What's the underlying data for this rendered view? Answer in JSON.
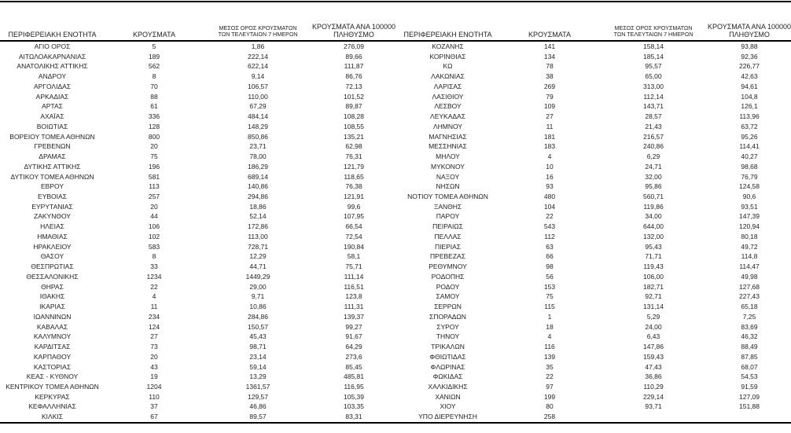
{
  "table": {
    "headers": {
      "region": "ΠΕΡΙΦΕΡΕΙΑΚΗ ΕΝΟΤΗΤΑ",
      "cases": "ΚΡΟΥΣΜΑΤΑ",
      "avg7_line1": "ΜΕΣΟΣ ΟΡΟΣ ΚΡΟΥΣΜΑΤΩΝ",
      "avg7_line2": "ΤΩΝ ΤΕΛΕΥΤΑΙΩΝ 7 ΗΜΕΡΩΝ",
      "per100k_line1": "ΚΡΟΥΣΜΑΤΑ ΑΝΑ 100000",
      "per100k_line2": "ΠΛΗΘΥΣΜΟ"
    },
    "left_rows": [
      [
        "ΑΓΙΟ ΟΡΟΣ",
        "5",
        "1,86",
        "276,09"
      ],
      [
        "ΑΙΤΩΛΟΑΚΑΡΝΑΝΙΑΣ",
        "189",
        "222,14",
        "89,66"
      ],
      [
        "ΑΝΑΤΟΛΙΚΗΣ ΑΤΤΙΚΗΣ",
        "562",
        "622,14",
        "111,87"
      ],
      [
        "ΑΝΔΡΟΥ",
        "8",
        "9,14",
        "86,76"
      ],
      [
        "ΑΡΓΟΛΙΔΑΣ",
        "70",
        "106,57",
        "72,13"
      ],
      [
        "ΑΡΚΑΔΙΑΣ",
        "88",
        "110,00",
        "101,52"
      ],
      [
        "ΑΡΤΑΣ",
        "61",
        "67,29",
        "89,87"
      ],
      [
        "ΑΧΑΪΑΣ",
        "336",
        "484,14",
        "108,28"
      ],
      [
        "ΒΟΙΩΤΙΑΣ",
        "128",
        "148,29",
        "108,55"
      ],
      [
        "ΒΟΡΕΙΟΥ ΤΟΜΕΑ ΑΘΗΝΩΝ",
        "800",
        "850,86",
        "135,21"
      ],
      [
        "ΓΡΕΒΕΝΩΝ",
        "20",
        "23,71",
        "62,98"
      ],
      [
        "ΔΡΑΜΑΣ",
        "75",
        "78,00",
        "76,31"
      ],
      [
        "ΔΥΤΙΚΗΣ ΑΤΤΙΚΗΣ",
        "196",
        "186,29",
        "121,79"
      ],
      [
        "ΔΥΤΙΚΟΥ ΤΟΜΕΑ ΑΘΗΝΩΝ",
        "581",
        "689,14",
        "118,65"
      ],
      [
        "ΕΒΡΟΥ",
        "113",
        "140,86",
        "76,38"
      ],
      [
        "ΕΥΒΟΙΑΣ",
        "257",
        "294,86",
        "121,91"
      ],
      [
        "ΕΥΡΥΤΑΝΙΑΣ",
        "20",
        "18,86",
        "99,6"
      ],
      [
        "ΖΑΚΥΝΘΟΥ",
        "44",
        "52,14",
        "107,95"
      ],
      [
        "ΗΛΕΙΑΣ",
        "106",
        "172,86",
        "66,54"
      ],
      [
        "ΗΜΑΘΙΑΣ",
        "102",
        "113,00",
        "72,54"
      ],
      [
        "ΗΡΑΚΛΕΙΟΥ",
        "583",
        "728,71",
        "190,84"
      ],
      [
        "ΘΑΣΟΥ",
        "8",
        "12,29",
        "58,1"
      ],
      [
        "ΘΕΣΠΡΩΤΙΑΣ",
        "33",
        "44,71",
        "75,71"
      ],
      [
        "ΘΕΣΣΑΛΟΝΙΚΗΣ",
        "1234",
        "1449,29",
        "111,14"
      ],
      [
        "ΘΗΡΑΣ",
        "22",
        "29,00",
        "116,51"
      ],
      [
        "ΙΘΑΚΗΣ",
        "4",
        "9,71",
        "123,8"
      ],
      [
        "ΙΚΑΡΙΑΣ",
        "11",
        "10,86",
        "111,31"
      ],
      [
        "ΙΩΑΝΝΙΝΩΝ",
        "234",
        "284,86",
        "139,37"
      ],
      [
        "ΚΑΒΑΛΑΣ",
        "124",
        "150,57",
        "99,27"
      ],
      [
        "ΚΑΛΥΜΝΟΥ",
        "27",
        "45,43",
        "91,67"
      ],
      [
        "ΚΑΡΔΙΤΣΑΣ",
        "73",
        "98,71",
        "64,29"
      ],
      [
        "ΚΑΡΠΑΘΟΥ",
        "20",
        "23,14",
        "273,6"
      ],
      [
        "ΚΑΣΤΟΡΙΑΣ",
        "43",
        "59,14",
        "85,45"
      ],
      [
        "ΚΕΑΣ - ΚΥΘΝΟΥ",
        "19",
        "13,29",
        "485,81"
      ],
      [
        "ΚΕΝΤΡΙΚΟΥ ΤΟΜΕΑ ΑΘΗΝΩΝ",
        "1204",
        "1361,57",
        "116,95"
      ],
      [
        "ΚΕΡΚΥΡΑΣ",
        "110",
        "129,57",
        "105,39"
      ],
      [
        "ΚΕΦΑΛΛΗΝΙΑΣ",
        "37",
        "46,86",
        "103,35"
      ],
      [
        "ΚΙΛΚΙΣ",
        "67",
        "89,57",
        "83,31"
      ]
    ],
    "right_rows": [
      [
        "ΚΟΖΑΝΗΣ",
        "141",
        "158,14",
        "93,88"
      ],
      [
        "ΚΟΡΙΝΘΙΑΣ",
        "134",
        "185,14",
        "92,36"
      ],
      [
        "ΚΩ",
        "78",
        "95,57",
        "226,77"
      ],
      [
        "ΛΑΚΩΝΙΑΣ",
        "38",
        "65,00",
        "42,63"
      ],
      [
        "ΛΑΡΙΣΑΣ",
        "269",
        "313,00",
        "94,61"
      ],
      [
        "ΛΑΣΙΘΙΟΥ",
        "79",
        "112,14",
        "104,8"
      ],
      [
        "ΛΕΣΒΟΥ",
        "109",
        "143,71",
        "126,1"
      ],
      [
        "ΛΕΥΚΑΔΑΣ",
        "27",
        "28,57",
        "113,96"
      ],
      [
        "ΛΗΜΝΟΥ",
        "11",
        "21,43",
        "63,72"
      ],
      [
        "ΜΑΓΝΗΣΙΑΣ",
        "181",
        "216,57",
        "95,26"
      ],
      [
        "ΜΕΣΣΗΝΙΑΣ",
        "183",
        "240,86",
        "114,41"
      ],
      [
        "ΜΗΛΟΥ",
        "4",
        "6,29",
        "40,27"
      ],
      [
        "ΜΥΚΟΝΟΥ",
        "10",
        "24,71",
        "98,68"
      ],
      [
        "ΝΑΞΟΥ",
        "16",
        "32,00",
        "76,79"
      ],
      [
        "ΝΗΣΩΝ",
        "93",
        "95,86",
        "124,58"
      ],
      [
        "ΝΟΤΙΟΥ ΤΟΜΕΑ ΑΘΗΝΩΝ",
        "480",
        "560,71",
        "90,6"
      ],
      [
        "ΞΑΝΘΗΣ",
        "104",
        "119,86",
        "93,51"
      ],
      [
        "ΠΑΡΟΥ",
        "22",
        "34,00",
        "147,39"
      ],
      [
        "ΠΕΙΡΑΙΩΣ",
        "543",
        "644,00",
        "120,94"
      ],
      [
        "ΠΕΛΛΑΣ",
        "112",
        "132,00",
        "80,18"
      ],
      [
        "ΠΙΕΡΙΑΣ",
        "63",
        "95,43",
        "49,72"
      ],
      [
        "ΠΡΕΒΕΖΑΣ",
        "66",
        "71,71",
        "114,8"
      ],
      [
        "ΡΕΘΥΜΝΟΥ",
        "98",
        "119,43",
        "114,47"
      ],
      [
        "ΡΟΔΟΠΗΣ",
        "56",
        "106,00",
        "49,98"
      ],
      [
        "ΡΟΔΟΥ",
        "153",
        "182,71",
        "127,68"
      ],
      [
        "ΣΑΜΟΥ",
        "75",
        "92,71",
        "227,43"
      ],
      [
        "ΣΕΡΡΩΝ",
        "115",
        "131,14",
        "65,18"
      ],
      [
        "ΣΠΟΡΑΔΩΝ",
        "1",
        "5,29",
        "7,25"
      ],
      [
        "ΣΥΡΟΥ",
        "18",
        "24,00",
        "83,69"
      ],
      [
        "ΤΗΝΟΥ",
        "4",
        "6,43",
        "46,32"
      ],
      [
        "ΤΡΙΚΑΛΩΝ",
        "116",
        "147,86",
        "88,49"
      ],
      [
        "ΦΘΙΩΤΙΔΑΣ",
        "139",
        "159,43",
        "87,85"
      ],
      [
        "ΦΛΩΡΙΝΑΣ",
        "35",
        "47,43",
        "68,07"
      ],
      [
        "ΦΩΚΙΔΑΣ",
        "22",
        "36,86",
        "54,53"
      ],
      [
        "ΧΑΛΚΙΔΙΚΗΣ",
        "97",
        "110,29",
        "91,59"
      ],
      [
        "ΧΑΝΙΩΝ",
        "199",
        "229,14",
        "127,09"
      ],
      [
        "ΧΙΟΥ",
        "80",
        "93,71",
        "151,88"
      ],
      [
        "ΥΠΟ ΔΙΕΡΕΥΝΗΣΗ",
        "258",
        "",
        ""
      ]
    ]
  }
}
